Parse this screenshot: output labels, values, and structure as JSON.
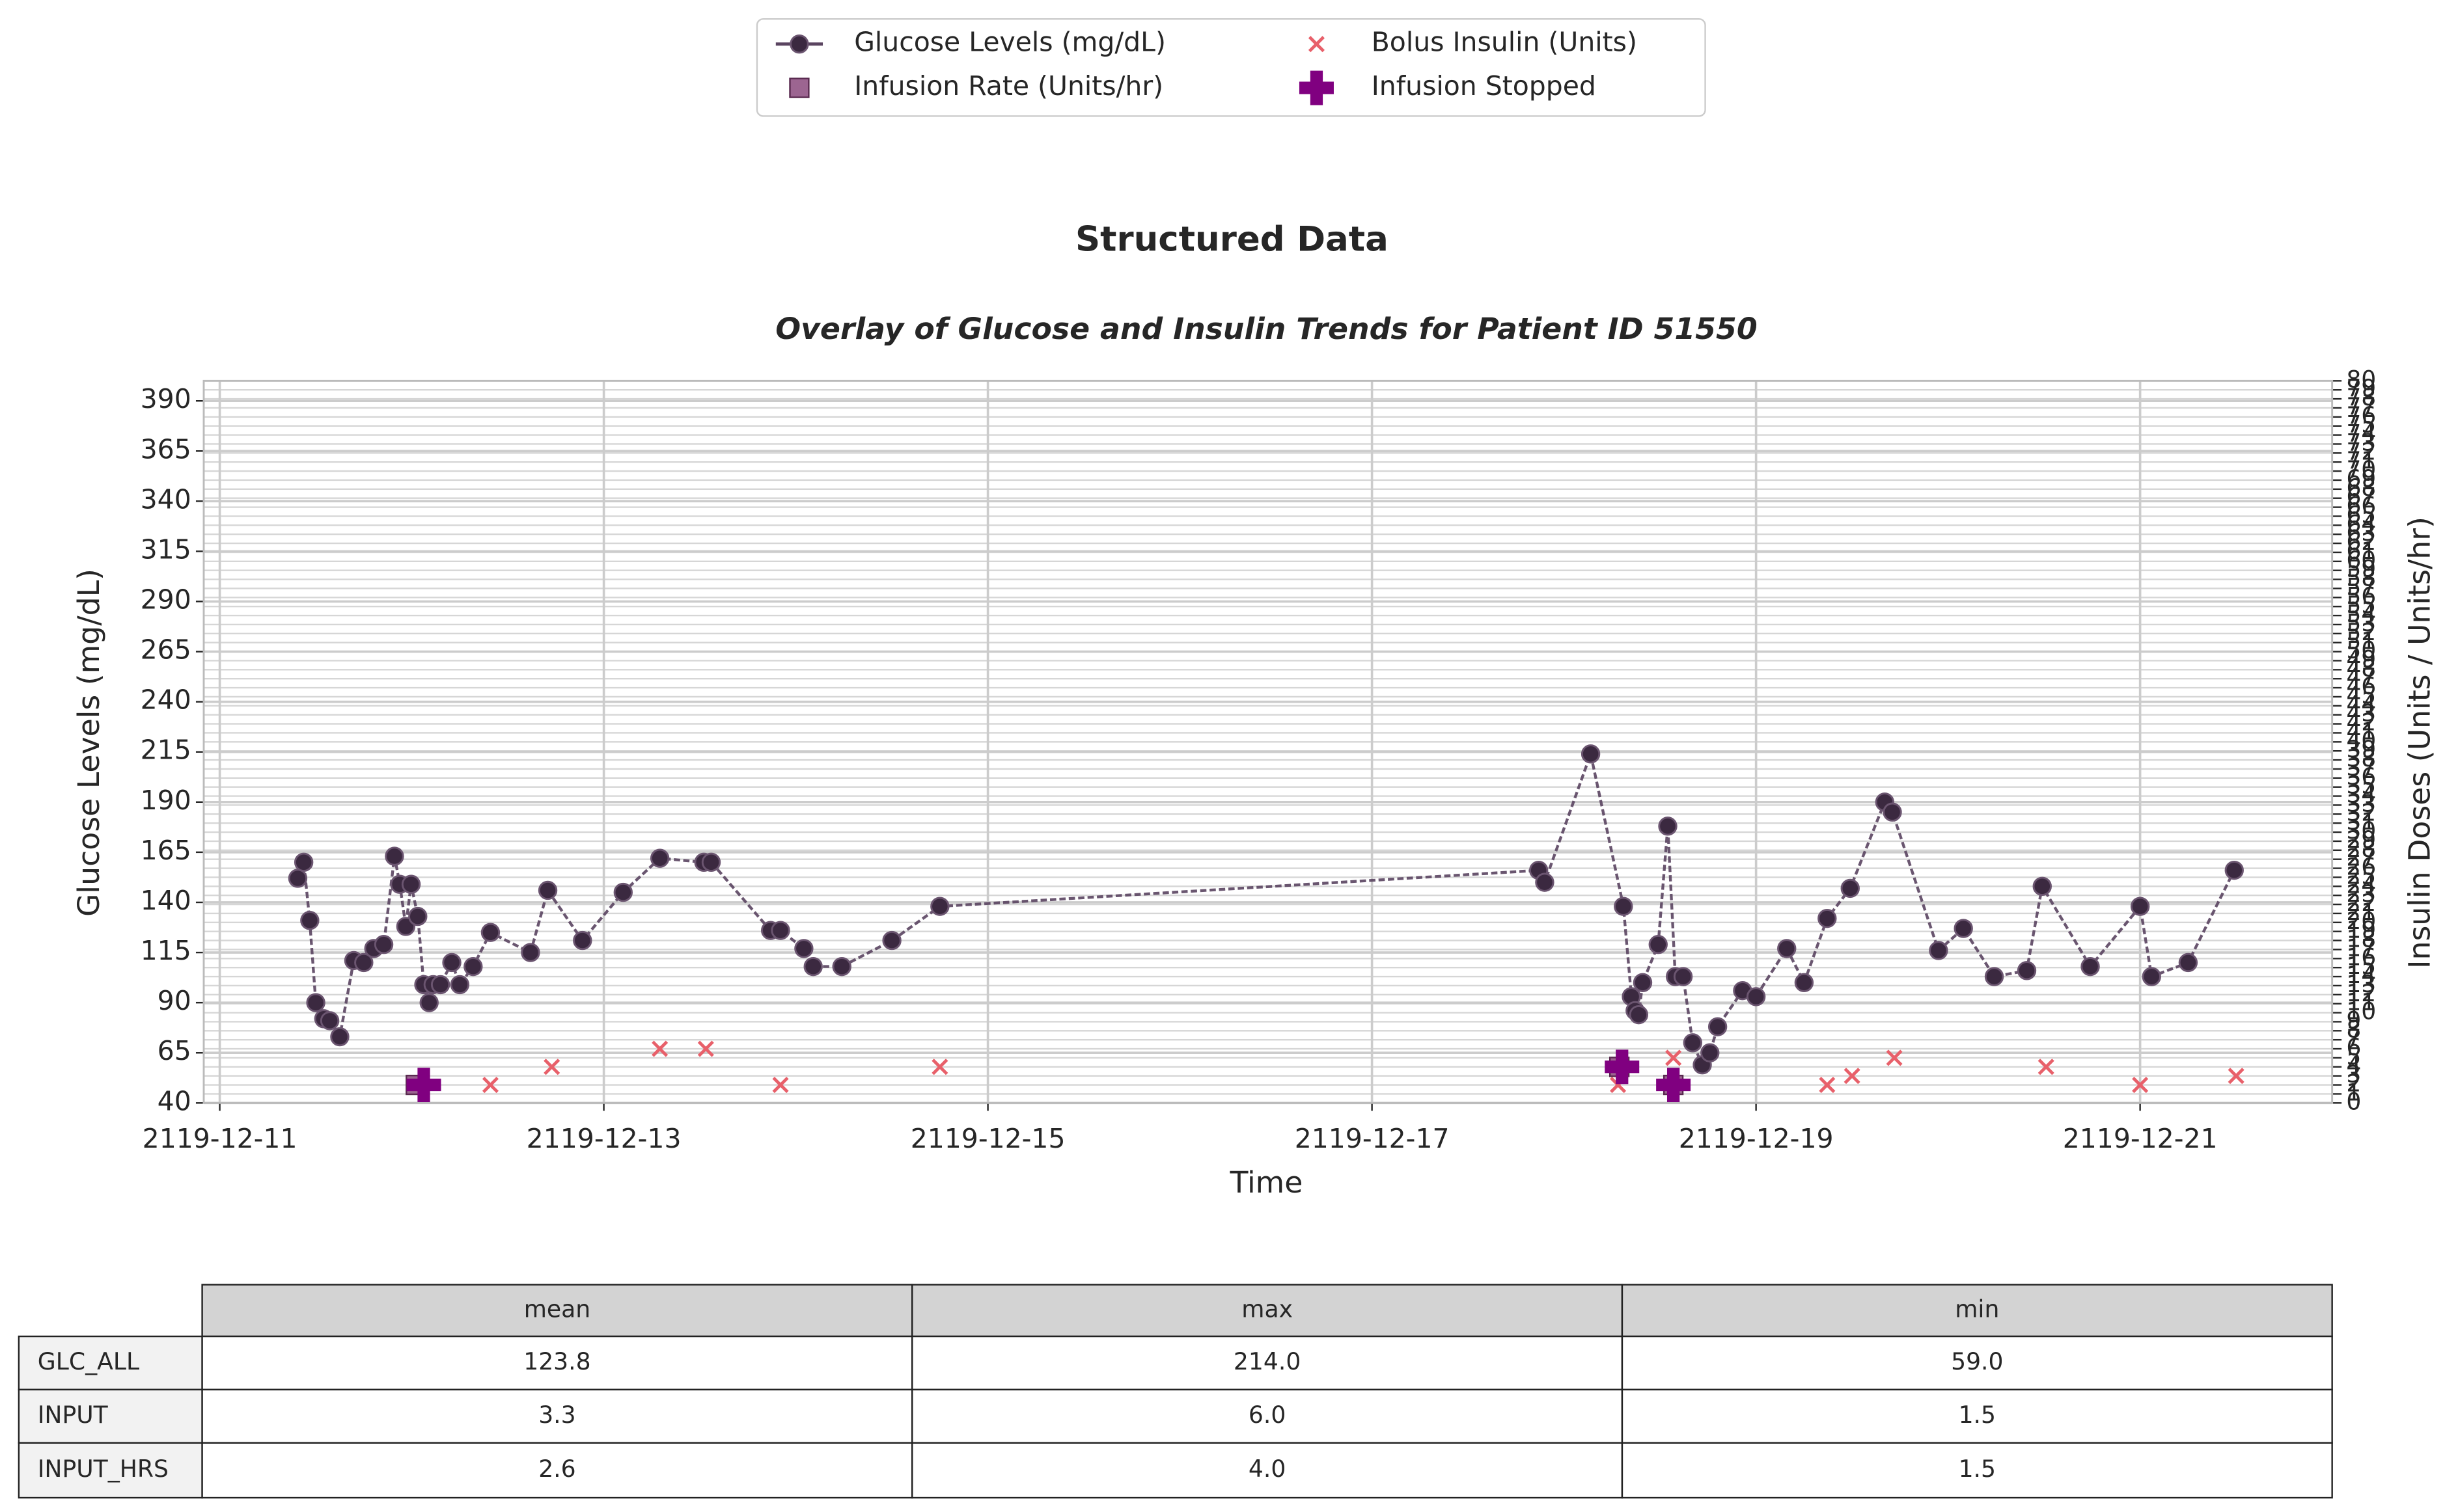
{
  "chart_data": {
    "type": "line",
    "title": "Structured Data",
    "subtitle": "Overlay of Glucose and Insulin Trends for Patient ID 51550",
    "xlabel": "Time",
    "ylabel": "Glucose Levels (mg/dL)",
    "y2label": "Insulin Doses (Units / Units/hr)",
    "xlim": [
      "2119-12-10T22:00",
      "2119-12-22T00:00"
    ],
    "xticks": [
      "2119-12-11",
      "2119-12-13",
      "2119-12-15",
      "2119-12-17",
      "2119-12-19",
      "2119-12-21"
    ],
    "ylim": [
      40,
      400
    ],
    "yticks": [
      40,
      65,
      90,
      115,
      140,
      165,
      190,
      215,
      240,
      265,
      290,
      315,
      340,
      365,
      390
    ],
    "y2lim": [
      0,
      80
    ],
    "y2ticks": [
      0,
      1,
      2,
      3,
      4,
      5,
      6,
      7,
      8,
      9,
      10,
      11,
      12,
      13,
      14,
      15,
      16,
      17,
      18,
      19,
      20,
      21,
      22,
      23,
      24,
      25,
      26,
      27,
      28,
      29,
      30,
      31,
      32,
      33,
      34,
      35,
      36,
      37,
      38,
      39,
      40,
      41,
      42,
      43,
      44,
      45,
      46,
      47,
      48,
      49,
      50,
      51,
      52,
      53,
      54,
      55,
      56,
      57,
      58,
      59,
      60,
      61,
      62,
      63,
      64,
      65,
      66,
      67,
      68,
      69,
      70,
      71,
      72,
      73,
      74,
      75,
      76,
      77,
      78,
      79,
      80
    ],
    "grid": true,
    "legend": "top center",
    "series": [
      {
        "name": "Glucose Levels (mg/dL)",
        "type": "line",
        "color": "#5a4460",
        "x": [
          "2119-12-11T09:45",
          "2119-12-11T10:30",
          "2119-12-11T11:15",
          "2119-12-11T12:00",
          "2119-12-11T13:00",
          "2119-12-11T13:45",
          "2119-12-11T15:00",
          "2119-12-11T16:45",
          "2119-12-11T18:00",
          "2119-12-11T19:15",
          "2119-12-11T20:30",
          "2119-12-11T21:50",
          "2119-12-11T22:30",
          "2119-12-11T23:15",
          "2119-12-11T23:55",
          "2119-12-12T00:45",
          "2119-12-12T01:30",
          "2119-12-12T02:10",
          "2119-12-12T02:40",
          "2119-12-12T03:35",
          "2119-12-12T05:00",
          "2119-12-12T06:00",
          "2119-12-12T07:40",
          "2119-12-12T09:50",
          "2119-12-12T14:50",
          "2119-12-12T17:00",
          "2119-12-12T21:20",
          "2119-12-13T02:25",
          "2119-12-13T07:00",
          "2119-12-13T12:30",
          "2119-12-13T13:25",
          "2119-12-13T20:50",
          "2119-12-13T22:05",
          "2119-12-14T01:00",
          "2119-12-14T02:10",
          "2119-12-14T05:45",
          "2119-12-14T12:00",
          "2119-12-14T18:00",
          "2119-12-17T20:50",
          "2119-12-17T21:35",
          "2119-12-18T03:20",
          "2119-12-18T07:25",
          "2119-12-18T08:25",
          "2119-12-18T08:53",
          "2119-12-18T09:20",
          "2119-12-18T09:50",
          "2119-12-18T11:46",
          "2119-12-18T12:58",
          "2119-12-18T13:55",
          "2119-12-18T14:53",
          "2119-12-18T16:05",
          "2119-12-18T17:17",
          "2119-12-18T18:14",
          "2119-12-18T19:12",
          "2119-12-18T22:19",
          "2119-12-19T00:00",
          "2119-12-19T03:50",
          "2119-12-19T06:00",
          "2119-12-19T08:53",
          "2119-12-19T11:46",
          "2119-12-19T16:05",
          "2119-12-19T17:02",
          "2119-12-19T22:48",
          "2119-12-20T01:55",
          "2119-12-20T05:46",
          "2119-12-20T09:50",
          "2119-12-20T11:46",
          "2119-12-20T17:46",
          "2119-12-21T00:00",
          "2119-12-21T01:26",
          "2119-12-21T06:00",
          "2119-12-21T11:46"
        ],
        "values": [
          152,
          160,
          131,
          90,
          82,
          81,
          73,
          111,
          110,
          117,
          119,
          163,
          149,
          128,
          149,
          133,
          99,
          90,
          99,
          99,
          110,
          99,
          108,
          125,
          115,
          146,
          121,
          145,
          162,
          160,
          160,
          126,
          126,
          117,
          108,
          108,
          121,
          138,
          156,
          150,
          214,
          138,
          93,
          86,
          84,
          100,
          119,
          178,
          103,
          103,
          70,
          59,
          65,
          78,
          96,
          93,
          117,
          100,
          132,
          147,
          190,
          185,
          116,
          127,
          103,
          106,
          148,
          108,
          138,
          103,
          110,
          156
        ]
      },
      {
        "name": "Bolus Insulin (Units)",
        "type": "scatter",
        "marker": "x",
        "axis": "y2",
        "color": "#e8606a",
        "x": [
          "2119-12-12T09:50",
          "2119-12-12T17:30",
          "2119-12-13T07:00",
          "2119-12-13T12:45",
          "2119-12-13T22:05",
          "2119-12-14T18:00",
          "2119-12-18T06:45",
          "2119-12-18T13:40",
          "2119-12-19T08:53",
          "2119-12-19T12:00",
          "2119-12-19T17:17",
          "2119-12-20T12:15",
          "2119-12-21T00:00",
          "2119-12-21T12:00"
        ],
        "values": [
          2,
          4,
          6,
          6,
          2,
          4,
          2,
          5,
          2,
          3,
          5,
          4,
          2,
          3
        ]
      },
      {
        "name": "Infusion Rate (Units/hr)",
        "type": "scatter",
        "marker": "square",
        "axis": "y2",
        "color": "#8b4a7e",
        "x": [
          "2119-12-12T00:30",
          "2119-12-18T06:55",
          "2119-12-18T13:40"
        ],
        "values": [
          2,
          4,
          2
        ]
      },
      {
        "name": "Infusion Stopped",
        "type": "scatter",
        "marker": "plus",
        "axis": "y2",
        "color": "#800080",
        "x": [
          "2119-12-12T01:30",
          "2119-12-18T07:15",
          "2119-12-18T13:40"
        ],
        "values": [
          2,
          4,
          2
        ]
      }
    ]
  },
  "table": {
    "columns": [
      "mean",
      "max",
      "min"
    ],
    "rows": [
      {
        "label": "GLC_ALL",
        "cells": [
          "123.8",
          "214.0",
          "59.0"
        ]
      },
      {
        "label": "INPUT",
        "cells": [
          "3.3",
          "6.0",
          "1.5"
        ]
      },
      {
        "label": "INPUT_HRS",
        "cells": [
          "2.6",
          "4.0",
          "1.5"
        ]
      }
    ]
  }
}
